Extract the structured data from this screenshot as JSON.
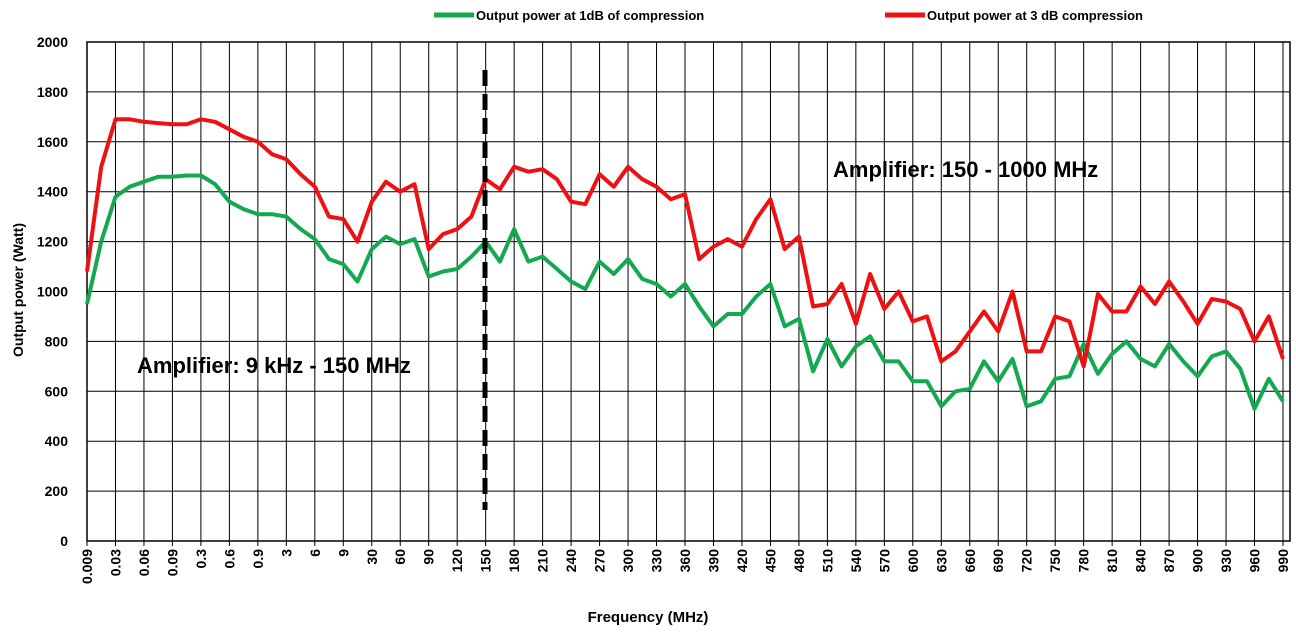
{
  "chart_data": {
    "type": "line",
    "x_label": "Frequency (MHz)",
    "y_label": "Output power (Watt)",
    "annotations": [
      "Amplifier: 9 kHz - 150 MHz",
      "Amplifier: 150 - 1000 MHz"
    ],
    "categories": [
      "0.009",
      null,
      "0.03",
      null,
      "0.06",
      null,
      "0.09",
      null,
      "0.3",
      null,
      "0.6",
      null,
      "0.9",
      null,
      "3",
      null,
      "6",
      null,
      "9",
      null,
      "30",
      null,
      "60",
      null,
      "90",
      null,
      "120",
      null,
      "150",
      null,
      "180",
      null,
      "210",
      null,
      "240",
      null,
      "270",
      null,
      "300",
      null,
      "330",
      null,
      "360",
      null,
      "390",
      null,
      "420",
      null,
      "450",
      null,
      "480",
      null,
      "510",
      null,
      "540",
      null,
      "570",
      null,
      "600",
      null,
      "630",
      null,
      "660",
      null,
      "690",
      null,
      "720",
      null,
      "750",
      null,
      "780",
      null,
      "810",
      null,
      "840",
      null,
      "870",
      null,
      "900",
      null,
      "930",
      null,
      "960",
      null,
      "990"
    ],
    "series": [
      {
        "name": "Output power at 1dB of compression",
        "color": "#14a850",
        "values": [
          950,
          1200,
          1380,
          1420,
          1440,
          1460,
          1460,
          1465,
          1465,
          1430,
          1360,
          1330,
          1310,
          1310,
          1300,
          1250,
          1210,
          1130,
          1110,
          1040,
          1170,
          1220,
          1190,
          1210,
          1060,
          1080,
          1090,
          1140,
          1200,
          1120,
          1250,
          1120,
          1140,
          1090,
          1040,
          1010,
          1120,
          1070,
          1130,
          1050,
          1030,
          980,
          1030,
          940,
          860,
          910,
          910,
          980,
          1030,
          860,
          890,
          680,
          810,
          700,
          780,
          820,
          720,
          720,
          640,
          640,
          540,
          600,
          610,
          720,
          640,
          730,
          540,
          560,
          650,
          660,
          790,
          670,
          750,
          800,
          730,
          700,
          790,
          720,
          660,
          740,
          760,
          690,
          530,
          650,
          560
        ]
      },
      {
        "name": "Output power at 3 dB compression",
        "color": "#ee1111",
        "values": [
          1080,
          1500,
          1690,
          1690,
          1680,
          1675,
          1670,
          1670,
          1690,
          1680,
          1650,
          1620,
          1600,
          1550,
          1530,
          1470,
          1420,
          1300,
          1290,
          1200,
          1360,
          1440,
          1400,
          1430,
          1170,
          1230,
          1250,
          1300,
          1450,
          1410,
          1500,
          1480,
          1490,
          1450,
          1360,
          1350,
          1470,
          1420,
          1500,
          1450,
          1420,
          1370,
          1390,
          1130,
          1180,
          1210,
          1180,
          1290,
          1370,
          1170,
          1220,
          940,
          950,
          1030,
          870,
          1070,
          930,
          1000,
          880,
          900,
          720,
          760,
          840,
          920,
          840,
          1000,
          760,
          760,
          900,
          880,
          700,
          990,
          920,
          920,
          1020,
          950,
          1040,
          960,
          870,
          970,
          960,
          930,
          800,
          900,
          730
        ]
      }
    ],
    "ylim": [
      0,
      2000
    ],
    "yticks": [
      0,
      200,
      400,
      600,
      800,
      1000,
      1200,
      1400,
      1600,
      1800,
      2000
    ],
    "grid": true
  }
}
